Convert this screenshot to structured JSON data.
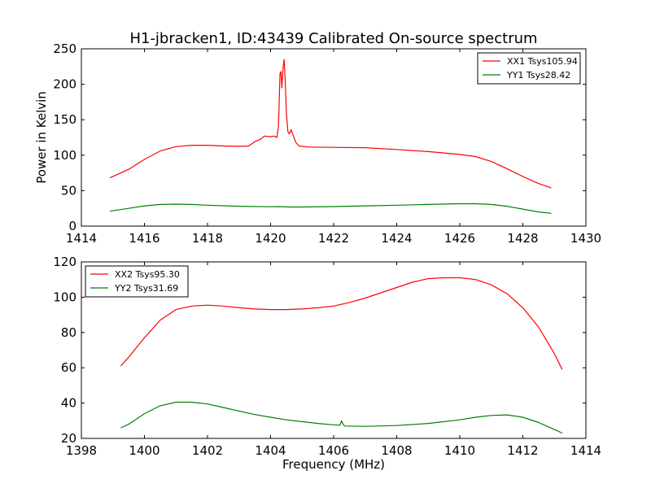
{
  "title": "H1-jbracken1, ID:43439 Calibrated On-source spectrum",
  "chart_data": [
    {
      "type": "line",
      "xlim": [
        1414,
        1430
      ],
      "ylim": [
        0,
        250
      ],
      "xticks": [
        1414,
        1416,
        1418,
        1420,
        1422,
        1424,
        1426,
        1428,
        1430
      ],
      "yticks": [
        0,
        50,
        100,
        150,
        200,
        250
      ],
      "xlabel": "",
      "ylabel": "Power in Kelvin",
      "legend_position": "top-right",
      "grid": false,
      "series": [
        {
          "name": "XX1 Tsys105.94",
          "color": "#ff0000",
          "points": [
            [
              1414.9,
              68
            ],
            [
              1415.5,
              80
            ],
            [
              1416,
              94
            ],
            [
              1416.5,
              106
            ],
            [
              1417,
              112
            ],
            [
              1417.5,
              114
            ],
            [
              1418,
              114
            ],
            [
              1418.5,
              113
            ],
            [
              1419,
              112.5
            ],
            [
              1419.3,
              113
            ],
            [
              1419.5,
              119
            ],
            [
              1419.7,
              123
            ],
            [
              1419.8,
              127
            ],
            [
              1420,
              126
            ],
            [
              1420.1,
              127
            ],
            [
              1420.2,
              125
            ],
            [
              1420.25,
              140
            ],
            [
              1420.3,
              215
            ],
            [
              1420.33,
              218
            ],
            [
              1420.36,
              195
            ],
            [
              1420.4,
              225
            ],
            [
              1420.43,
              235
            ],
            [
              1420.47,
              200
            ],
            [
              1420.5,
              160
            ],
            [
              1420.55,
              133
            ],
            [
              1420.6,
              130
            ],
            [
              1420.65,
              136
            ],
            [
              1420.7,
              130
            ],
            [
              1420.8,
              118
            ],
            [
              1420.9,
              113
            ],
            [
              1421.2,
              111.5
            ],
            [
              1422,
              111
            ],
            [
              1423,
              110.5
            ],
            [
              1424,
              108
            ],
            [
              1425,
              105
            ],
            [
              1426,
              101
            ],
            [
              1426.5,
              98
            ],
            [
              1427,
              91
            ],
            [
              1427.5,
              81
            ],
            [
              1428,
              70
            ],
            [
              1428.5,
              60
            ],
            [
              1428.9,
              54
            ]
          ]
        },
        {
          "name": "YY1 Tsys28.42",
          "color": "#008000",
          "points": [
            [
              1414.9,
              21
            ],
            [
              1415.5,
              25
            ],
            [
              1416,
              28.5
            ],
            [
              1416.5,
              30.5
            ],
            [
              1417,
              31
            ],
            [
              1417.5,
              30.5
            ],
            [
              1418,
              29.5
            ],
            [
              1419,
              28
            ],
            [
              1420,
              27.3
            ],
            [
              1420.3,
              27.5
            ],
            [
              1420.6,
              27
            ],
            [
              1421,
              27
            ],
            [
              1422,
              27.5
            ],
            [
              1423,
              28.5
            ],
            [
              1424,
              29.5
            ],
            [
              1425,
              30.5
            ],
            [
              1426,
              31.5
            ],
            [
              1426.5,
              31.5
            ],
            [
              1427,
              30.5
            ],
            [
              1427.5,
              28
            ],
            [
              1428,
              24
            ],
            [
              1428.5,
              20
            ],
            [
              1428.9,
              18
            ]
          ]
        }
      ]
    },
    {
      "type": "line",
      "xlim": [
        1398,
        1414
      ],
      "ylim": [
        20,
        120
      ],
      "xticks": [
        1398,
        1400,
        1402,
        1404,
        1406,
        1408,
        1410,
        1412,
        1414
      ],
      "yticks": [
        20,
        40,
        60,
        80,
        100,
        120
      ],
      "xlabel": "Frequency (MHz)",
      "ylabel": "",
      "legend_position": "top-left",
      "grid": false,
      "series": [
        {
          "name": "XX2 Tsys95.30",
          "color": "#ff0000",
          "points": [
            [
              1399.25,
              61
            ],
            [
              1399.5,
              66
            ],
            [
              1400,
              77
            ],
            [
              1400.5,
              87
            ],
            [
              1401,
              93
            ],
            [
              1401.5,
              95
            ],
            [
              1402,
              95.5
            ],
            [
              1402.5,
              95
            ],
            [
              1403,
              94
            ],
            [
              1403.5,
              93.3
            ],
            [
              1404,
              93
            ],
            [
              1404.5,
              93
            ],
            [
              1405,
              93.3
            ],
            [
              1405.5,
              94
            ],
            [
              1406,
              95
            ],
            [
              1406.5,
              97
            ],
            [
              1407,
              99.5
            ],
            [
              1407.5,
              102.5
            ],
            [
              1408,
              105.5
            ],
            [
              1408.5,
              108.5
            ],
            [
              1409,
              110.5
            ],
            [
              1409.5,
              111
            ],
            [
              1410,
              111
            ],
            [
              1410.5,
              110
            ],
            [
              1411,
              107
            ],
            [
              1411.5,
              102
            ],
            [
              1412,
              94
            ],
            [
              1412.5,
              83
            ],
            [
              1413,
              68
            ],
            [
              1413.25,
              59
            ]
          ]
        },
        {
          "name": "YY2 Tsys31.69",
          "color": "#008000",
          "points": [
            [
              1399.25,
              26
            ],
            [
              1399.5,
              28
            ],
            [
              1400,
              34
            ],
            [
              1400.5,
              38.5
            ],
            [
              1401,
              40.5
            ],
            [
              1401.5,
              40.5
            ],
            [
              1402,
              39.5
            ],
            [
              1402.5,
              37.5
            ],
            [
              1403,
              35.5
            ],
            [
              1403.5,
              33.5
            ],
            [
              1404,
              32
            ],
            [
              1404.5,
              30.5
            ],
            [
              1405,
              29.5
            ],
            [
              1405.5,
              28.5
            ],
            [
              1406,
              27.7
            ],
            [
              1406.2,
              27.5
            ],
            [
              1406.25,
              30
            ],
            [
              1406.3,
              28
            ],
            [
              1406.35,
              27
            ],
            [
              1407,
              26.8
            ],
            [
              1408,
              27.3
            ],
            [
              1409,
              28.5
            ],
            [
              1410,
              30.5
            ],
            [
              1410.5,
              32
            ],
            [
              1411,
              33
            ],
            [
              1411.5,
              33.3
            ],
            [
              1412,
              32
            ],
            [
              1412.5,
              29
            ],
            [
              1413,
              25
            ],
            [
              1413.25,
              23
            ]
          ]
        }
      ]
    }
  ]
}
